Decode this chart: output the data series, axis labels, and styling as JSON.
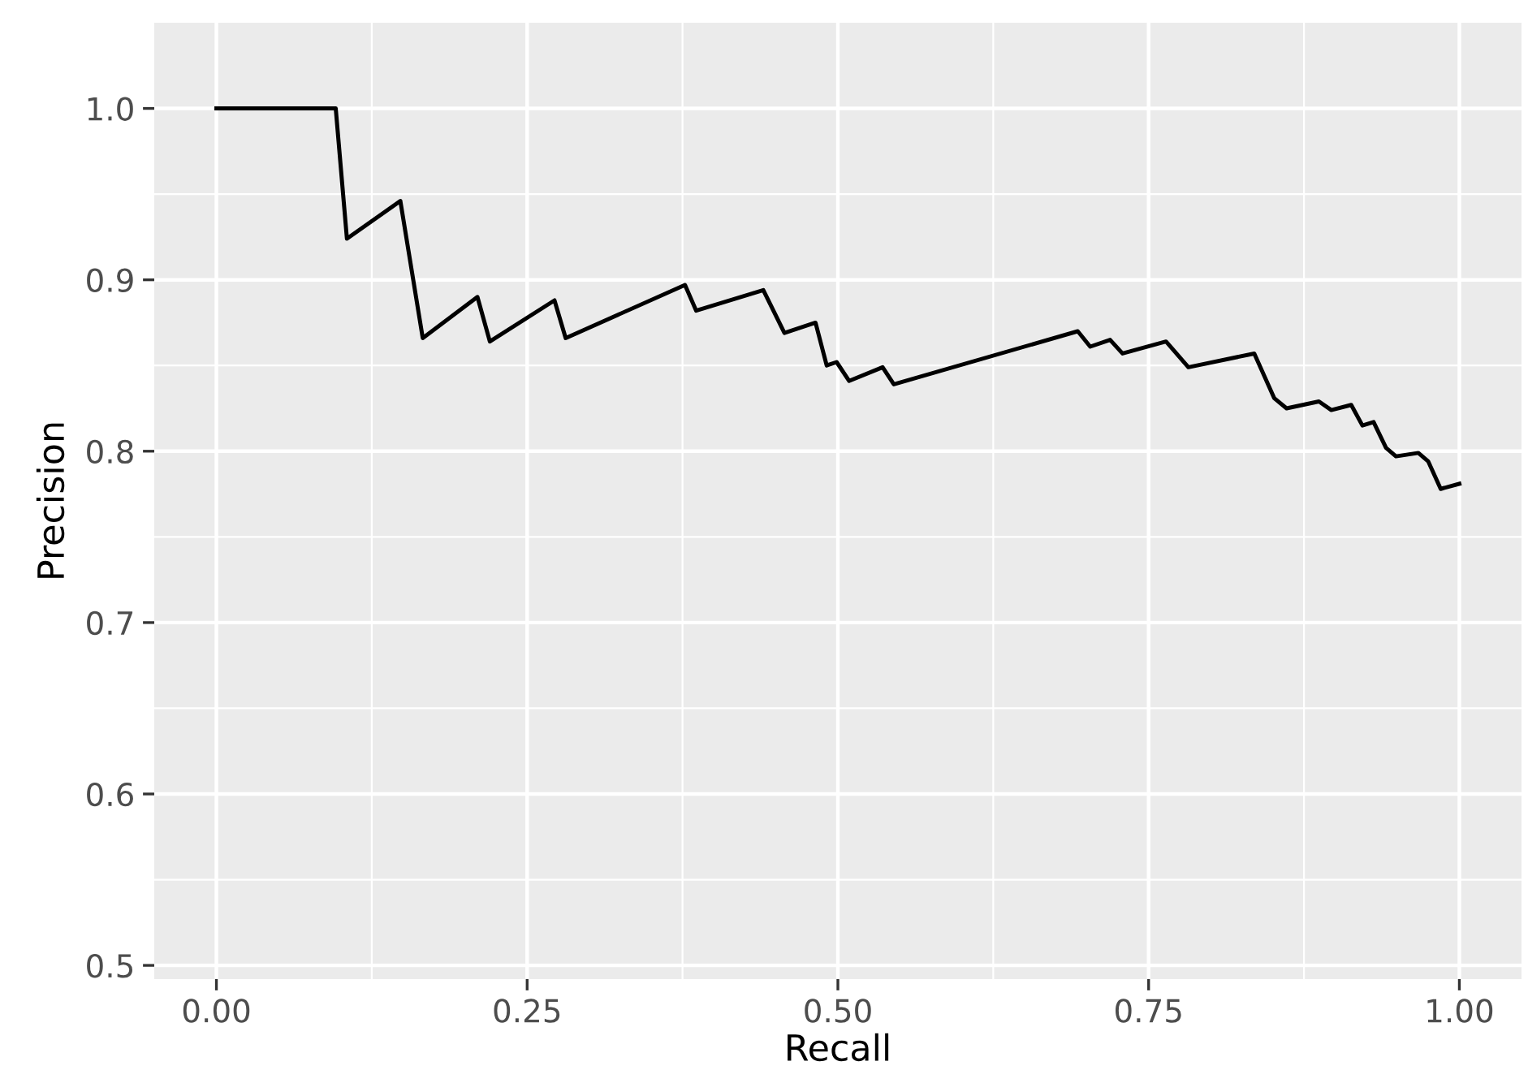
{
  "chart_data": {
    "type": "line",
    "xlabel": "Recall",
    "ylabel": "Precision",
    "x": [
      0,
      0.096,
      0.105,
      0.148,
      0.166,
      0.21,
      0.22,
      0.272,
      0.281,
      0.377,
      0.386,
      0.44,
      0.457,
      0.482,
      0.491,
      0.499,
      0.509,
      0.536,
      0.545,
      0.693,
      0.703,
      0.719,
      0.729,
      0.764,
      0.782,
      0.835,
      0.851,
      0.861,
      0.887,
      0.897,
      0.913,
      0.922,
      0.931,
      0.941,
      0.949,
      0.967,
      0.975,
      0.985,
      1.0
    ],
    "series": [
      {
        "color": "#000000",
        "values": [
          1.0,
          1.0,
          0.924,
          0.946,
          0.866,
          0.89,
          0.864,
          0.888,
          0.866,
          0.897,
          0.882,
          0.894,
          0.869,
          0.875,
          0.85,
          0.852,
          0.841,
          0.849,
          0.839,
          0.87,
          0.861,
          0.865,
          0.857,
          0.864,
          0.849,
          0.857,
          0.831,
          0.825,
          0.829,
          0.824,
          0.827,
          0.815,
          0.817,
          0.802,
          0.797,
          0.799,
          0.794,
          0.778,
          0.781
        ]
      }
    ],
    "xlim": [
      -0.05,
      1.05
    ],
    "ylim": [
      0.492,
      1.05
    ],
    "xticks": [
      {
        "value": 0,
        "label": "0.00"
      },
      {
        "value": 0.25,
        "label": "0.25"
      },
      {
        "value": 0.5,
        "label": "0.50"
      },
      {
        "value": 0.75,
        "label": "0.75"
      },
      {
        "value": 1,
        "label": "1.00"
      }
    ],
    "yticks": [
      0.5,
      0.6,
      0.7,
      0.8,
      0.9,
      {
        "value": 1,
        "label": "1.0"
      }
    ],
    "grid": true,
    "legend": false
  }
}
